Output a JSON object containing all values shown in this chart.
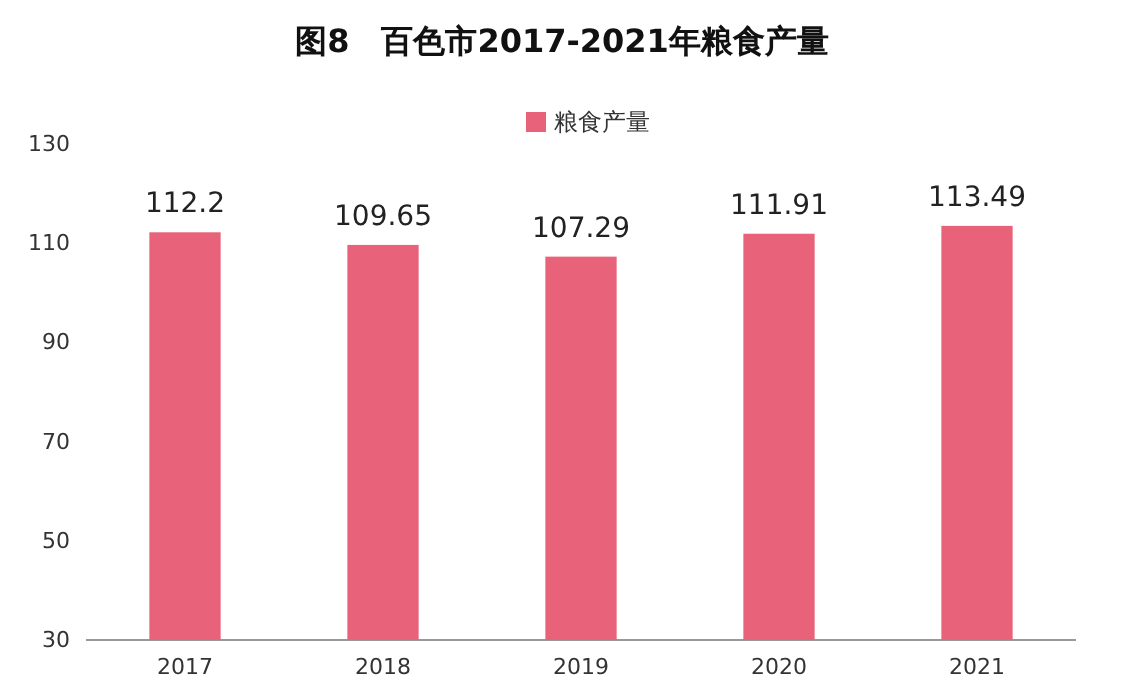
{
  "chart_data": {
    "type": "bar",
    "title": "图8　百色市2017-2021年粮食产量",
    "categories": [
      "2017",
      "2018",
      "2019",
      "2020",
      "2021"
    ],
    "series": [
      {
        "name": "粮食产量",
        "color": "#e8637a",
        "values": [
          112.2,
          109.65,
          107.29,
          111.91,
          113.49
        ]
      }
    ],
    "ylim": [
      30,
      130
    ],
    "yticks": [
      30,
      50,
      70,
      90,
      110,
      130
    ],
    "data_labels": true,
    "legend": "top",
    "grid": false
  }
}
